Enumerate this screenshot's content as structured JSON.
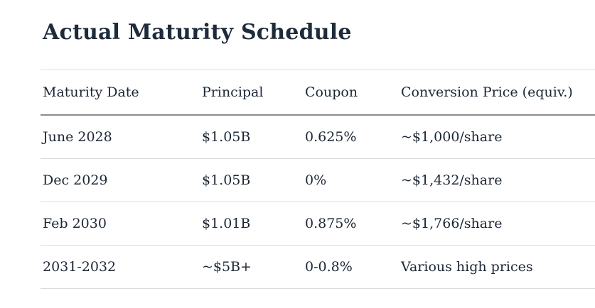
{
  "page": {
    "title": "Actual Maturity Schedule"
  },
  "table": {
    "columns": [
      "Maturity Date",
      "Principal",
      "Coupon",
      "Conversion Price (equiv.)"
    ],
    "rows": [
      [
        "June 2028",
        "$1.05B",
        "0.625%",
        "~$1,000/share"
      ],
      [
        "Dec 2029",
        "$1.05B",
        "0%",
        "~$1,432/share"
      ],
      [
        "Feb 2030",
        "$1.01B",
        "0.875%",
        "~$1,766/share"
      ],
      [
        "2031-2032",
        "~$5B+",
        "0-0.8%",
        "Various high prices"
      ]
    ]
  },
  "colors": {
    "title_text": "#1d2b3a",
    "body_text": "#1b2735",
    "rule_light": "#d9dbde",
    "rule_dark": "#888d93",
    "background": "#ffffff"
  }
}
